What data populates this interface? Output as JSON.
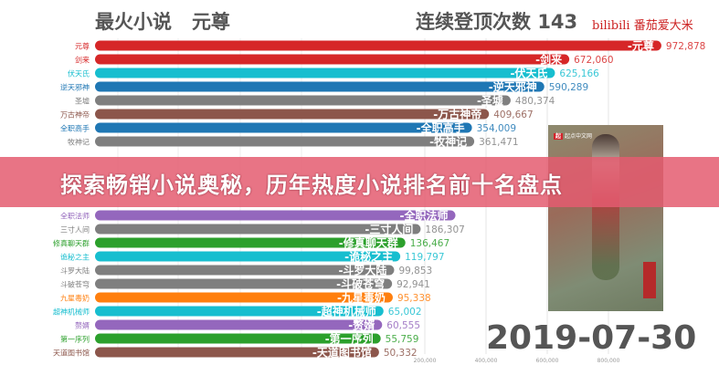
{
  "chart_data": {
    "type": "bar",
    "title": "最火小说",
    "leader": "元尊",
    "streak_label": "连续登顶次数",
    "streak_value": "143",
    "date": "2019-07-30",
    "watermark": "bilibili 番茄爱大米",
    "cover_brand": "起点中文网",
    "x_ticks": [
      200000,
      400000,
      600000,
      800000
    ],
    "x_tick_labels": [
      "200,000",
      "400,000",
      "600,000",
      "800,000"
    ],
    "grid": true,
    "bars": [
      {
        "name": "元尊",
        "value": 972878,
        "label": "972,878",
        "color": "#d62728"
      },
      {
        "name": "剑来",
        "value": 672060,
        "label": "672,060",
        "color": "#d62728"
      },
      {
        "name": "伏天氏",
        "value": 625166,
        "label": "625,166",
        "color": "#17becf"
      },
      {
        "name": "逆天邪神",
        "value": 590289,
        "label": "590,289",
        "color": "#1f77b4"
      },
      {
        "name": "圣墟",
        "value": 480374,
        "label": "480,374",
        "color": "#7f7f7f"
      },
      {
        "name": "万古神帝",
        "value": 409667,
        "label": "409,667",
        "color": "#8c564b"
      },
      {
        "name": "全职高手",
        "value": 354009,
        "label": "354,009",
        "color": "#1f77b4"
      },
      {
        "name": "牧神记",
        "value": 361471,
        "label": "361,471",
        "color": "#7f7f7f"
      },
      {
        "name": "全职法师",
        "value": 300000,
        "label": "",
        "color": "#9467bd"
      },
      {
        "name": "三寸人间",
        "value": 186307,
        "label": "186,307",
        "color": "#7f7f7f"
      },
      {
        "name": "修真聊天群",
        "value": 136467,
        "label": "136,467",
        "color": "#2ca02c"
      },
      {
        "name": "诡秘之主",
        "value": 119797,
        "label": "119,797",
        "color": "#17becf"
      },
      {
        "name": "斗罗大陆",
        "value": 99853,
        "label": "99,853",
        "color": "#7f7f7f"
      },
      {
        "name": "斗破苍穹",
        "value": 92941,
        "label": "92,941",
        "color": "#7f7f7f"
      },
      {
        "name": "九星毒奶",
        "value": 95338,
        "label": "95,338",
        "color": "#ff7f0e"
      },
      {
        "name": "超神机械师",
        "value": 65002,
        "label": "65,002",
        "color": "#17becf"
      },
      {
        "name": "赘婿",
        "value": 60555,
        "label": "60,555",
        "color": "#9467bd"
      },
      {
        "name": "第一序列",
        "value": 55759,
        "label": "55,759",
        "color": "#2ca02c"
      },
      {
        "name": "天道图书馆",
        "value": 50332,
        "label": "50,332",
        "color": "#8c564b"
      }
    ]
  },
  "banner": {
    "text": "探索畅销小说奥秘，历年热度小说排名前十名盘点"
  }
}
